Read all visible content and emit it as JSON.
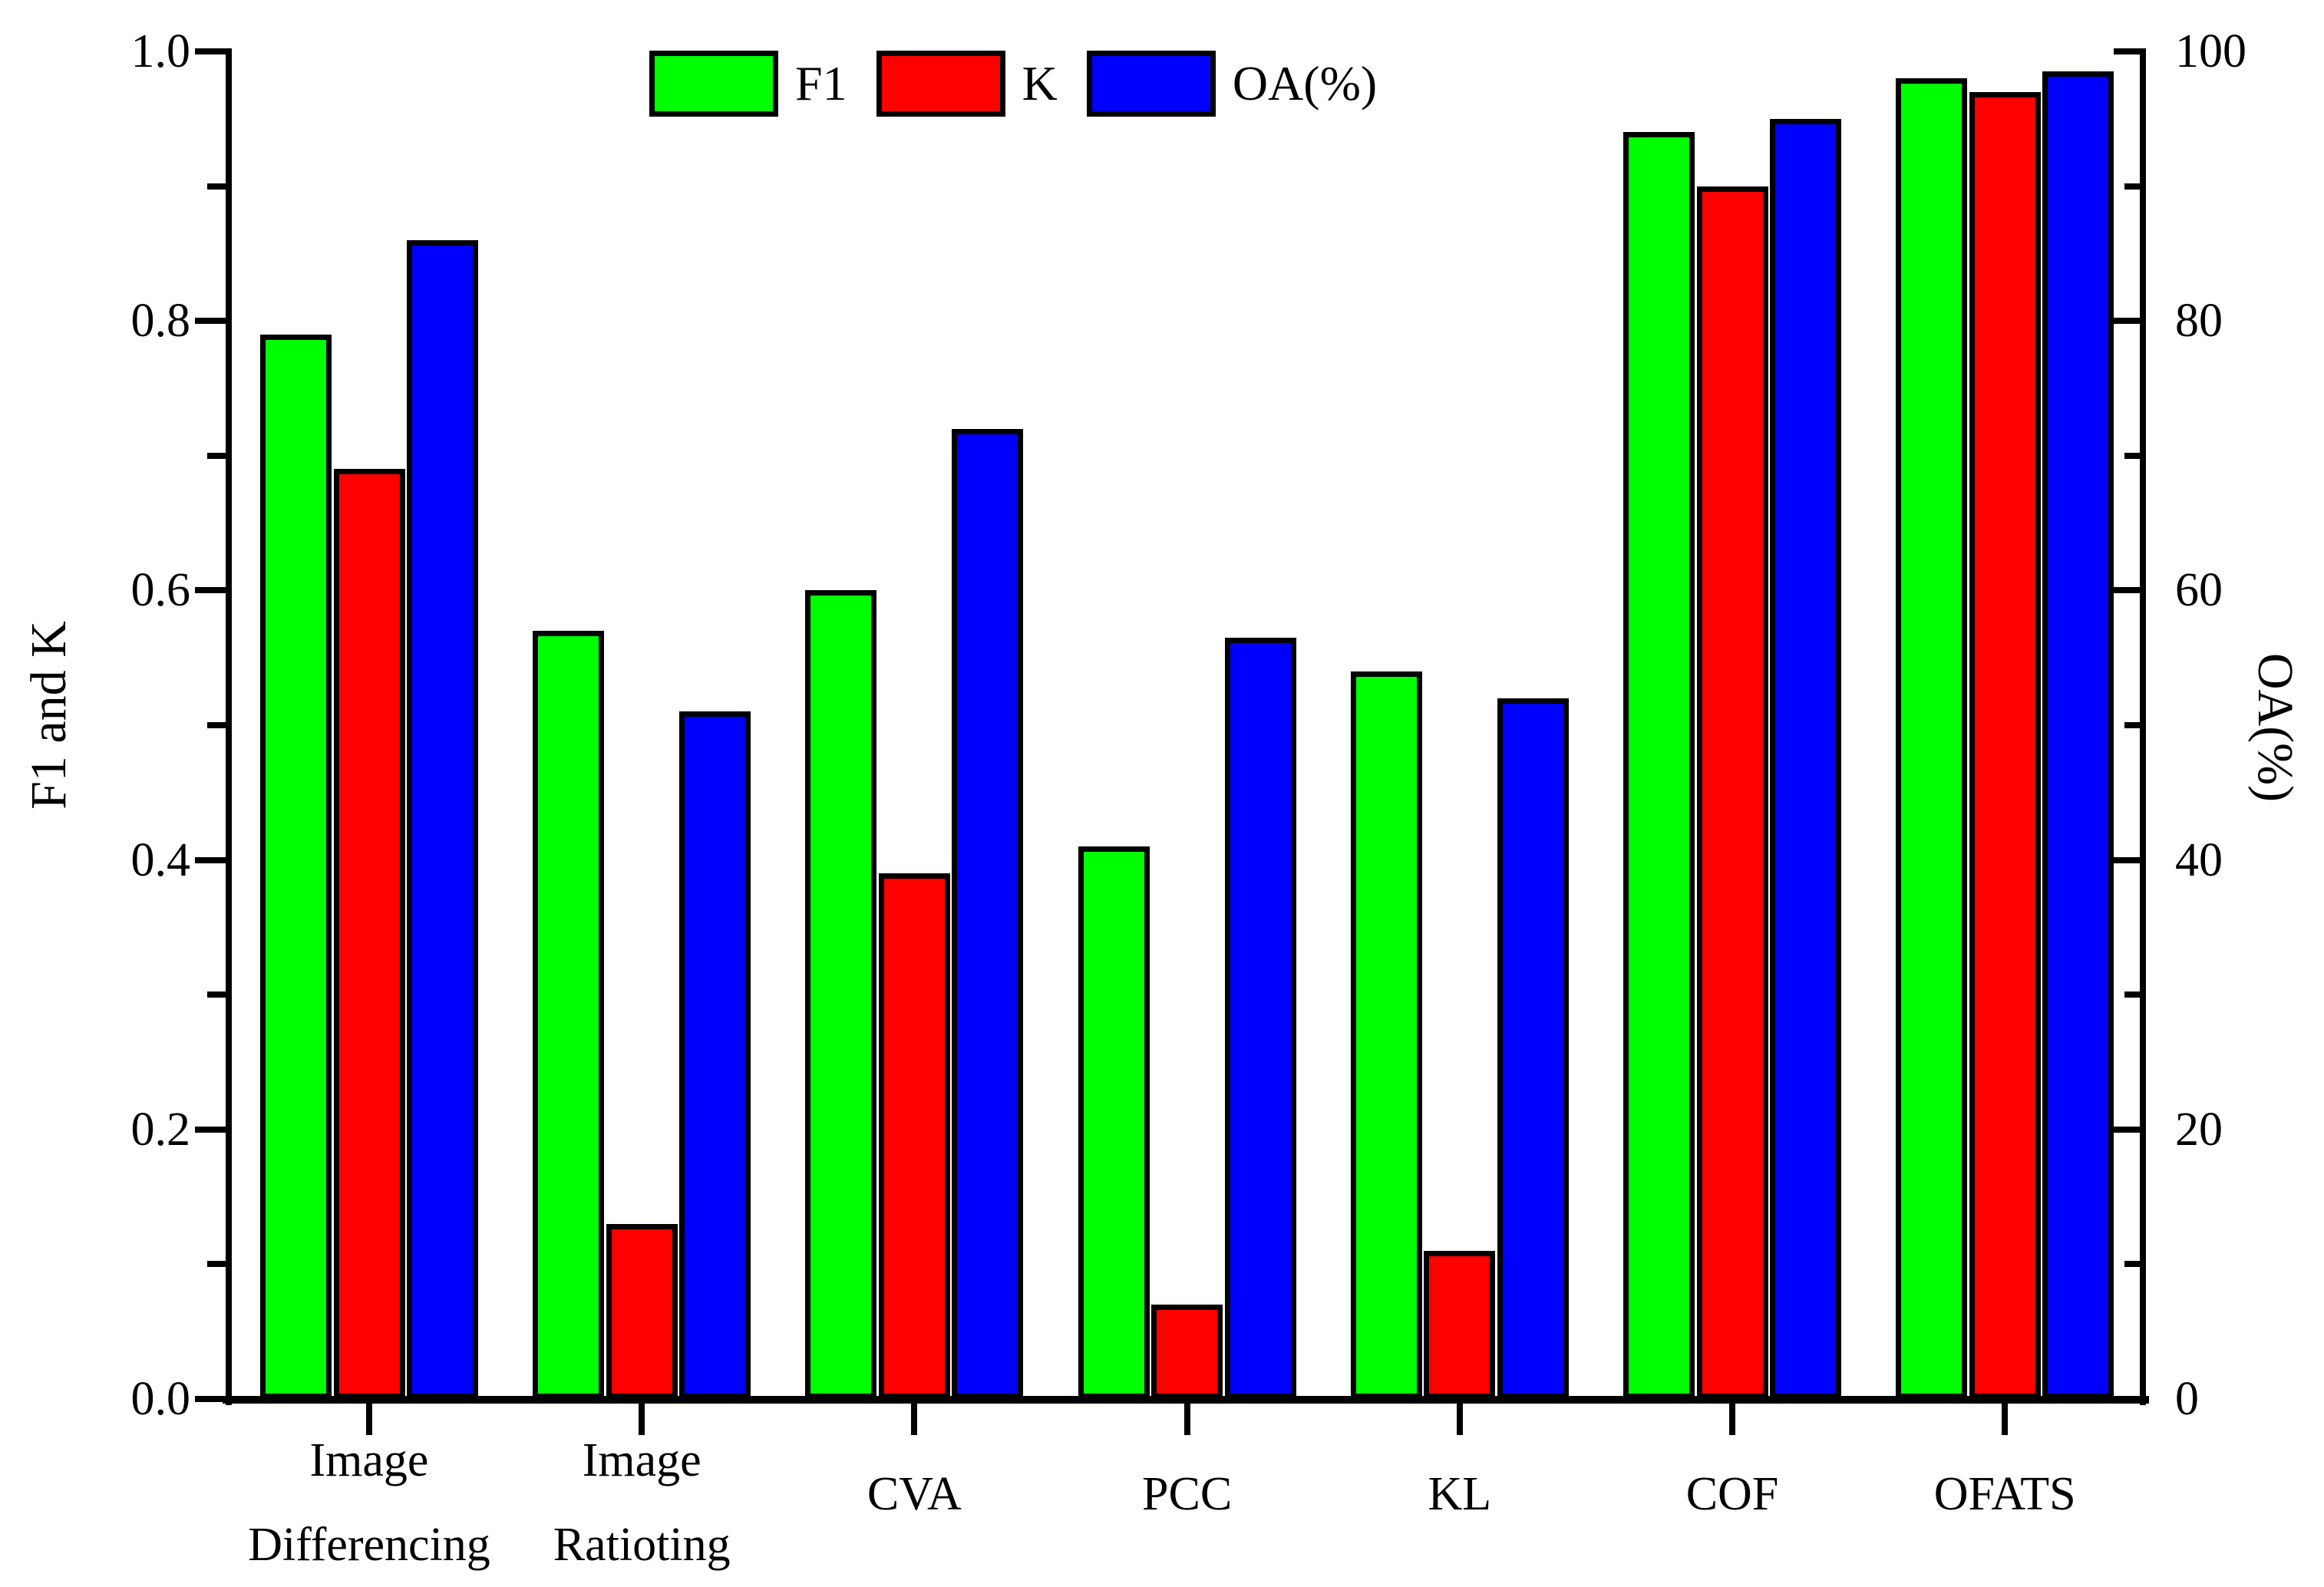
{
  "chart_data": {
    "type": "bar",
    "title": "",
    "background": "#FFFFFF",
    "grid": false,
    "categories": [
      "Image Differencing",
      "Image Ratioting",
      "CVA",
      "PCC",
      "KL",
      "COF",
      "OFATS"
    ],
    "category_lines": [
      [
        "Image",
        "Differencing"
      ],
      [
        "Image",
        "Ratioting"
      ],
      [
        "CVA"
      ],
      [
        "PCC"
      ],
      [
        "KL"
      ],
      [
        "COF"
      ],
      [
        "OFATS"
      ]
    ],
    "series": [
      {
        "name": "F1",
        "color": "#00FF00",
        "axis": "left",
        "values": [
          0.79,
          0.57,
          0.6,
          0.41,
          0.54,
          0.94,
          0.98
        ]
      },
      {
        "name": "K",
        "color": "#FF0000",
        "axis": "left",
        "values": [
          0.69,
          0.13,
          0.39,
          0.07,
          0.11,
          0.9,
          0.97
        ]
      },
      {
        "name": "OA(%)",
        "color": "#0000FF",
        "axis": "right",
        "values": [
          86.0,
          51.0,
          72.0,
          56.5,
          52.0,
          95.0,
          98.5
        ]
      }
    ],
    "left_axis": {
      "label": "F1 and K",
      "min": 0.0,
      "max": 1.0,
      "major_ticks": [
        "0.0",
        "0.2",
        "0.4",
        "0.6",
        "0.8",
        "1.0"
      ],
      "minor_tick_values": [
        0.1,
        0.3,
        0.5,
        0.7,
        0.9
      ]
    },
    "right_axis": {
      "label": "OA(%)",
      "min": 0,
      "max": 100,
      "major_ticks": [
        "0",
        "20",
        "40",
        "60",
        "80",
        "100"
      ],
      "minor_tick_values": [
        10,
        30,
        50,
        70,
        90
      ]
    },
    "legend": {
      "position": "top-inside",
      "entries": [
        "F1",
        "K",
        "OA(%)"
      ]
    },
    "bar_edge_color": "#000000"
  }
}
